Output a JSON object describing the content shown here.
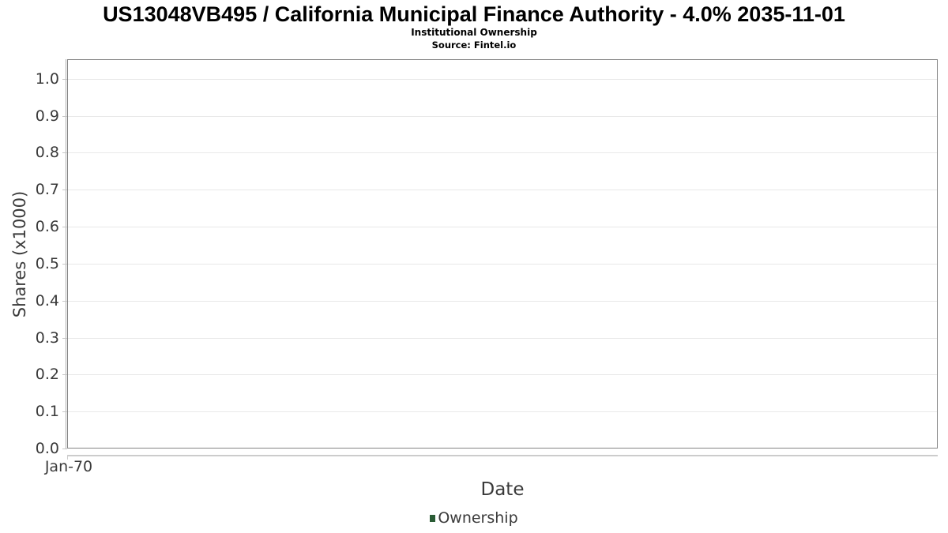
{
  "header": {
    "title": "US13048VB495 / California Municipal Finance Authority - 4.0% 2035-11-01",
    "subtitle": "Institutional Ownership",
    "source": "Source: Fintel.io"
  },
  "chart_data": {
    "type": "line",
    "title": "US13048VB495 / California Municipal Finance Authority - 4.0% 2035-11-01",
    "subtitle": "Institutional Ownership",
    "source": "Source: Fintel.io",
    "xlabel": "Date",
    "ylabel": "Shares (x1000)",
    "ylim": [
      0.0,
      1.053
    ],
    "ytick_values": [
      0.0,
      0.1,
      0.2,
      0.3,
      0.4,
      0.5,
      0.6,
      0.7,
      0.8,
      0.9,
      1.0
    ],
    "ytick_labels": [
      "0.0",
      "0.1",
      "0.2",
      "0.3",
      "0.4",
      "0.5",
      "0.6",
      "0.7",
      "0.8",
      "0.9",
      "1.0"
    ],
    "xticks": [
      "Jan-70"
    ],
    "grid": "horizontal",
    "legend_position": "bottom",
    "series": [
      {
        "name": "Ownership",
        "color": "#2a5c35",
        "x": [],
        "values": []
      }
    ]
  }
}
